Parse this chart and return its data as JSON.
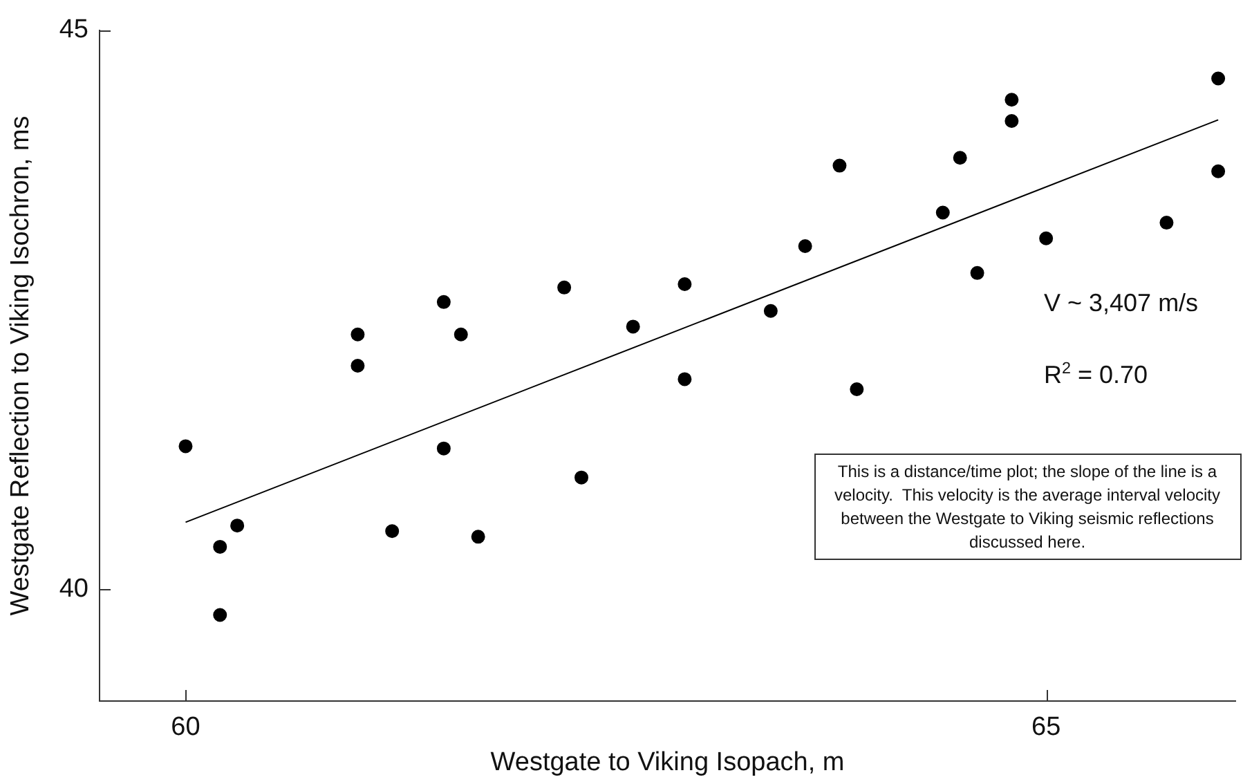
{
  "chart_data": {
    "type": "scatter",
    "xlabel": "Westgate to Viking Isopach, m",
    "ylabel": "Westgate Reflection to Viking Isochron, ms",
    "xlim": [
      59.5,
      66.1
    ],
    "xticks": [
      60,
      65
    ],
    "ylim": [
      39,
      45
    ],
    "yticks": [
      40,
      45
    ],
    "grid": false,
    "legend": false,
    "marker": "circle",
    "series": [
      {
        "type": "scatter",
        "color": "#000000",
        "x": [
          60,
          60.2,
          60.2,
          60.3,
          61,
          61,
          61.2,
          61.5,
          61.5,
          61.6,
          61.7,
          62.2,
          62.3,
          62.6,
          62.9,
          62.9,
          63.4,
          63.6,
          63.8,
          63.9,
          64.4,
          64.5,
          64.6,
          64.8,
          64.8,
          65,
          65.7,
          66,
          66
        ],
        "values": [
          41.28,
          40.38,
          39.77,
          40.57,
          42.28,
          42,
          40.52,
          42.57,
          41.26,
          42.28,
          40.47,
          42.7,
          41,
          42.35,
          42.73,
          41.88,
          42.49,
          43.07,
          43.79,
          41.79,
          43.37,
          43.86,
          42.83,
          44.38,
          44.19,
          43.14,
          43.28,
          44.57,
          43.74
        ]
      },
      {
        "type": "line",
        "color": "#000000",
        "line_style": "solid",
        "marker": "none",
        "x": [
          60,
          66
        ],
        "values": [
          40.6,
          44.2
        ]
      }
    ],
    "annotations": [
      "V ~ 3,407 m/s",
      "R$^{2}$ = 0.70",
      "This is a distance/time plot; the slope of the line is a velocity.  This velocity is the average interval velocity between the Westgate to Viking seismic reflections discussed here."
    ]
  }
}
